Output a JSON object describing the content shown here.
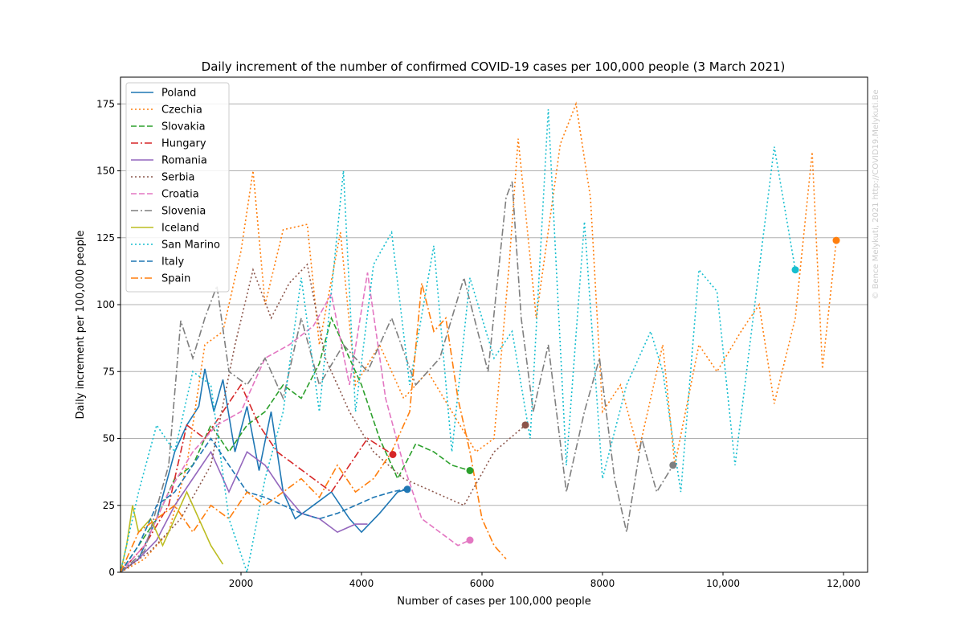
{
  "chart_data": {
    "type": "line",
    "title": "Daily increment of the number of confirmed COVID-19 cases per 100,000 people (3 March 2021)",
    "xlabel": "Number of cases per 100,000 people",
    "ylabel": "Daily increment per 100,000 people",
    "xlim": [
      0,
      12400
    ],
    "ylim": [
      0,
      185
    ],
    "xticks": [
      2000,
      4000,
      6000,
      8000,
      10000,
      12000
    ],
    "xtick_labels": [
      "2000",
      "4000",
      "6000",
      "8000",
      "10,000",
      "12,000"
    ],
    "yticks": [
      0,
      25,
      50,
      75,
      100,
      125,
      150,
      175
    ],
    "ytick_labels": [
      "0",
      "25",
      "50",
      "75",
      "100",
      "125",
      "150",
      "175"
    ],
    "grid": "horizontal",
    "legend_position": "top-left",
    "watermark": "© Bence Melykuti, 2021  http://COVID19.Melykuti.Be",
    "series": [
      {
        "name": "Poland",
        "color": "#1f77b4",
        "dash": "solid",
        "points": [
          [
            0,
            0
          ],
          [
            300,
            5
          ],
          [
            600,
            20
          ],
          [
            900,
            45
          ],
          [
            1100,
            55
          ],
          [
            1300,
            62
          ],
          [
            1400,
            76
          ],
          [
            1550,
            60
          ],
          [
            1700,
            72
          ],
          [
            1900,
            45
          ],
          [
            2100,
            62
          ],
          [
            2300,
            38
          ],
          [
            2500,
            60
          ],
          [
            2700,
            30
          ],
          [
            2900,
            20
          ],
          [
            3200,
            25
          ],
          [
            3500,
            30
          ],
          [
            3800,
            20
          ],
          [
            4000,
            15
          ],
          [
            4300,
            22
          ],
          [
            4600,
            30
          ],
          [
            4760,
            31
          ]
        ],
        "end": [
          4760,
          31
        ]
      },
      {
        "name": "Czechia",
        "color": "#ff7f0e",
        "dash": "dotted",
        "points": [
          [
            0,
            0
          ],
          [
            400,
            5
          ],
          [
            800,
            15
          ],
          [
            1100,
            40
          ],
          [
            1400,
            85
          ],
          [
            1700,
            90
          ],
          [
            2000,
            120
          ],
          [
            2200,
            150
          ],
          [
            2400,
            100
          ],
          [
            2700,
            128
          ],
          [
            3100,
            130
          ],
          [
            3300,
            85
          ],
          [
            3650,
            127
          ],
          [
            3900,
            70
          ],
          [
            4300,
            85
          ],
          [
            4700,
            65
          ],
          [
            5100,
            75
          ],
          [
            5500,
            60
          ],
          [
            5900,
            45
          ],
          [
            6200,
            50
          ],
          [
            6450,
            115
          ],
          [
            6600,
            162
          ],
          [
            6900,
            95
          ],
          [
            7300,
            160
          ],
          [
            7560,
            175
          ],
          [
            7800,
            140
          ],
          [
            8000,
            60
          ],
          [
            8300,
            70
          ],
          [
            8600,
            45
          ],
          [
            9000,
            85
          ],
          [
            9200,
            40
          ],
          [
            9600,
            85
          ],
          [
            9900,
            75
          ],
          [
            10300,
            90
          ],
          [
            10600,
            100
          ],
          [
            10850,
            63
          ],
          [
            11200,
            95
          ],
          [
            11480,
            157
          ],
          [
            11650,
            76
          ],
          [
            11880,
            124
          ]
        ],
        "end": null
      },
      {
        "name": "Slovakia",
        "color": "#2ca02c",
        "dash": "dashed",
        "points": [
          [
            0,
            0
          ],
          [
            300,
            10
          ],
          [
            600,
            20
          ],
          [
            900,
            35
          ],
          [
            1200,
            40
          ],
          [
            1500,
            55
          ],
          [
            1800,
            45
          ],
          [
            2100,
            55
          ],
          [
            2400,
            60
          ],
          [
            2700,
            70
          ],
          [
            3000,
            65
          ],
          [
            3300,
            78
          ],
          [
            3500,
            95
          ],
          [
            3700,
            85
          ],
          [
            4000,
            70
          ],
          [
            4300,
            50
          ],
          [
            4600,
            35
          ],
          [
            4900,
            48
          ],
          [
            5200,
            45
          ],
          [
            5500,
            40
          ],
          [
            5800,
            38
          ]
        ],
        "end": [
          5800,
          38
        ]
      },
      {
        "name": "Hungary",
        "color": "#d62728",
        "dash": "dashdot",
        "points": [
          [
            0,
            0
          ],
          [
            400,
            10
          ],
          [
            800,
            25
          ],
          [
            1100,
            55
          ],
          [
            1400,
            50
          ],
          [
            1700,
            60
          ],
          [
            2000,
            70
          ],
          [
            2300,
            55
          ],
          [
            2600,
            45
          ],
          [
            2900,
            40
          ],
          [
            3200,
            35
          ],
          [
            3500,
            30
          ],
          [
            3800,
            40
          ],
          [
            4100,
            50
          ],
          [
            4520,
            44
          ]
        ],
        "end": [
          4520,
          44
        ]
      },
      {
        "name": "Romania",
        "color": "#9467bd",
        "dash": "solid",
        "points": [
          [
            0,
            0
          ],
          [
            300,
            5
          ],
          [
            600,
            12
          ],
          [
            900,
            25
          ],
          [
            1200,
            35
          ],
          [
            1500,
            45
          ],
          [
            1800,
            30
          ],
          [
            2100,
            45
          ],
          [
            2400,
            40
          ],
          [
            2700,
            30
          ],
          [
            3000,
            22
          ],
          [
            3300,
            20
          ],
          [
            3600,
            15
          ],
          [
            3900,
            18
          ],
          [
            4100,
            18
          ]
        ],
        "end": null
      },
      {
        "name": "Serbia",
        "color": "#8c564b",
        "dash": "dotted",
        "points": [
          [
            0,
            0
          ],
          [
            500,
            8
          ],
          [
            1000,
            20
          ],
          [
            1500,
            40
          ],
          [
            1900,
            85
          ],
          [
            2200,
            113
          ],
          [
            2500,
            95
          ],
          [
            2800,
            108
          ],
          [
            3100,
            115
          ],
          [
            3400,
            80
          ],
          [
            3800,
            60
          ],
          [
            4200,
            45
          ],
          [
            4700,
            35
          ],
          [
            5200,
            30
          ],
          [
            5700,
            25
          ],
          [
            6200,
            45
          ],
          [
            6720,
            55
          ]
        ],
        "end": [
          6720,
          55
        ]
      },
      {
        "name": "Croatia",
        "color": "#e377c2",
        "dash": "dashed",
        "points": [
          [
            0,
            0
          ],
          [
            400,
            10
          ],
          [
            800,
            30
          ],
          [
            1200,
            45
          ],
          [
            1600,
            55
          ],
          [
            2000,
            60
          ],
          [
            2400,
            80
          ],
          [
            2800,
            85
          ],
          [
            3200,
            92
          ],
          [
            3500,
            104
          ],
          [
            3800,
            70
          ],
          [
            4100,
            112
          ],
          [
            4400,
            65
          ],
          [
            4700,
            40
          ],
          [
            5000,
            20
          ],
          [
            5300,
            15
          ],
          [
            5600,
            10
          ],
          [
            5800,
            12
          ]
        ],
        "end": [
          5800,
          12
        ]
      },
      {
        "name": "Slovenia",
        "color": "#7f7f7f",
        "dash": "dashdot",
        "points": [
          [
            0,
            0
          ],
          [
            400,
            8
          ],
          [
            800,
            40
          ],
          [
            1000,
            94
          ],
          [
            1200,
            80
          ],
          [
            1400,
            95
          ],
          [
            1600,
            107
          ],
          [
            1800,
            75
          ],
          [
            2100,
            70
          ],
          [
            2400,
            80
          ],
          [
            2700,
            65
          ],
          [
            3000,
            95
          ],
          [
            3300,
            70
          ],
          [
            3700,
            85
          ],
          [
            4100,
            75
          ],
          [
            4500,
            95
          ],
          [
            4900,
            70
          ],
          [
            5300,
            80
          ],
          [
            5700,
            110
          ],
          [
            6100,
            75
          ],
          [
            6400,
            140
          ],
          [
            6500,
            146
          ],
          [
            6650,
            95
          ],
          [
            6850,
            60
          ],
          [
            7100,
            85
          ],
          [
            7400,
            30
          ],
          [
            7700,
            60
          ],
          [
            7950,
            80
          ],
          [
            8200,
            35
          ],
          [
            8400,
            15
          ],
          [
            8650,
            50
          ],
          [
            8900,
            30
          ],
          [
            9170,
            40
          ]
        ],
        "end": [
          9170,
          40
        ]
      },
      {
        "name": "Iceland",
        "color": "#bcbd22",
        "dash": "solid",
        "points": [
          [
            0,
            0
          ],
          [
            100,
            10
          ],
          [
            200,
            25
          ],
          [
            300,
            15
          ],
          [
            500,
            20
          ],
          [
            700,
            10
          ],
          [
            900,
            20
          ],
          [
            1100,
            30
          ],
          [
            1300,
            20
          ],
          [
            1500,
            10
          ],
          [
            1700,
            3
          ]
        ],
        "end": null
      },
      {
        "name": "San Marino",
        "color": "#17becf",
        "dash": "dotted",
        "points": [
          [
            0,
            0
          ],
          [
            300,
            30
          ],
          [
            600,
            55
          ],
          [
            900,
            45
          ],
          [
            1200,
            75
          ],
          [
            1500,
            70
          ],
          [
            1800,
            20
          ],
          [
            2100,
            0
          ],
          [
            2400,
            35
          ],
          [
            2700,
            60
          ],
          [
            3000,
            110
          ],
          [
            3300,
            60
          ],
          [
            3700,
            150
          ],
          [
            3900,
            60
          ],
          [
            4200,
            115
          ],
          [
            4500,
            127
          ],
          [
            4800,
            70
          ],
          [
            5200,
            122
          ],
          [
            5500,
            45
          ],
          [
            5800,
            110
          ],
          [
            6200,
            80
          ],
          [
            6500,
            90
          ],
          [
            6800,
            50
          ],
          [
            7100,
            173
          ],
          [
            7400,
            40
          ],
          [
            7700,
            131
          ],
          [
            8000,
            35
          ],
          [
            8400,
            70
          ],
          [
            8800,
            90
          ],
          [
            9000,
            75
          ],
          [
            9300,
            30
          ],
          [
            9600,
            113
          ],
          [
            9900,
            105
          ],
          [
            10200,
            40
          ],
          [
            10500,
            95
          ],
          [
            10850,
            159
          ],
          [
            11200,
            113
          ]
        ],
        "end": [
          11200,
          113
        ]
      },
      {
        "name": "Italy",
        "color": "#1f77b4",
        "dash": "dashed",
        "points": [
          [
            0,
            0
          ],
          [
            300,
            10
          ],
          [
            600,
            25
          ],
          [
            900,
            30
          ],
          [
            1200,
            40
          ],
          [
            1500,
            50
          ],
          [
            1800,
            40
          ],
          [
            2100,
            30
          ],
          [
            2400,
            28
          ],
          [
            2700,
            25
          ],
          [
            3000,
            22
          ],
          [
            3300,
            20
          ],
          [
            3600,
            22
          ],
          [
            3900,
            25
          ],
          [
            4200,
            28
          ],
          [
            4500,
            30
          ],
          [
            4700,
            31
          ]
        ],
        "end": null
      },
      {
        "name": "Spain",
        "color": "#ff7f0e",
        "dash": "dashdot",
        "points": [
          [
            0,
            0
          ],
          [
            300,
            15
          ],
          [
            600,
            20
          ],
          [
            900,
            25
          ],
          [
            1200,
            15
          ],
          [
            1500,
            25
          ],
          [
            1800,
            20
          ],
          [
            2100,
            30
          ],
          [
            2400,
            25
          ],
          [
            2700,
            30
          ],
          [
            3000,
            35
          ],
          [
            3300,
            28
          ],
          [
            3600,
            40
          ],
          [
            3900,
            30
          ],
          [
            4200,
            35
          ],
          [
            4500,
            45
          ],
          [
            4800,
            60
          ],
          [
            5000,
            108
          ],
          [
            5200,
            90
          ],
          [
            5400,
            95
          ],
          [
            5600,
            65
          ],
          [
            5800,
            45
          ],
          [
            6000,
            20
          ],
          [
            6200,
            10
          ],
          [
            6400,
            5
          ]
        ],
        "end": null
      }
    ]
  }
}
